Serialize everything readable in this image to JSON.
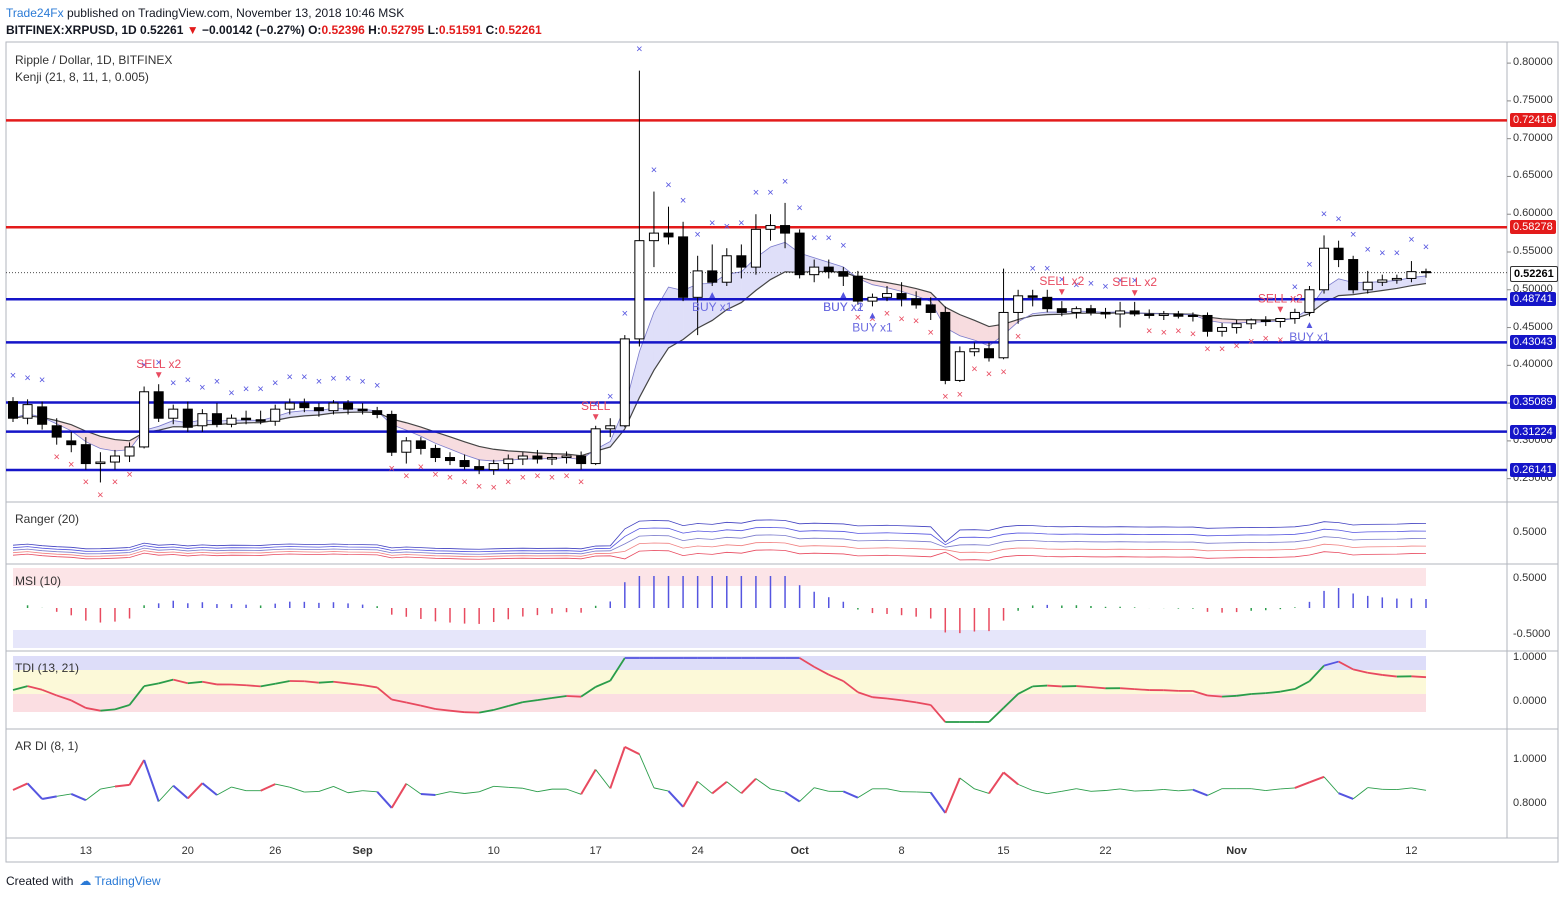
{
  "header": {
    "publisher": "Trade24Fx",
    "published_on": "published on TradingView.com, November 13, 2018 10:46 MSK",
    "symbol": "BITFINEX:XRPUSD, 1D",
    "last": "0.52261",
    "change": "−0.00142 (−0.27%)",
    "open_label": "O:",
    "open": "0.52396",
    "high_label": "H:",
    "high": "0.52795",
    "low_label": "L:",
    "low": "0.51591",
    "close_label": "C:",
    "close": "0.52261"
  },
  "chart_data": {
    "type": "candlestick",
    "title": "Ripple / Dollar, 1D, BITFINEX",
    "indicator": "Kenji (21, 8, 11, 1, 0.005)",
    "price_axis": [
      "0.80000",
      "0.75000",
      "0.70000",
      "0.65000",
      "0.60000",
      "0.55000",
      "0.50000",
      "0.45000",
      "0.40000",
      "0.35000",
      "0.30000",
      "0.25000"
    ],
    "ylim": [
      0.235,
      0.82
    ],
    "x_labels": [
      {
        "text": "13",
        "i": 5
      },
      {
        "text": "20",
        "i": 12
      },
      {
        "text": "26",
        "i": 18
      },
      {
        "text": "Sep",
        "i": 24
      },
      {
        "text": "10",
        "i": 33
      },
      {
        "text": "17",
        "i": 40
      },
      {
        "text": "24",
        "i": 47
      },
      {
        "text": "Oct",
        "i": 54
      },
      {
        "text": "8",
        "i": 61
      },
      {
        "text": "15",
        "i": 68
      },
      {
        "text": "22",
        "i": 75
      },
      {
        "text": "Nov",
        "i": 84
      },
      {
        "text": "12",
        "i": 96
      }
    ],
    "horizontal_levels": [
      {
        "value": "0.72416",
        "color": "#e31b1b"
      },
      {
        "value": "0.58278",
        "color": "#e31b1b"
      },
      {
        "value": "0.48741",
        "color": "#1515c8"
      },
      {
        "value": "0.43043",
        "color": "#1515c8"
      },
      {
        "value": "0.35089",
        "color": "#1515c8"
      },
      {
        "value": "0.31224",
        "color": "#1515c8"
      },
      {
        "value": "0.26141",
        "color": "#1515c8"
      }
    ],
    "current_price": "0.52261",
    "candles": [
      [
        0.352,
        0.358,
        0.325,
        0.33
      ],
      [
        0.33,
        0.355,
        0.322,
        0.348
      ],
      [
        0.345,
        0.352,
        0.315,
        0.322
      ],
      [
        0.32,
        0.33,
        0.295,
        0.305
      ],
      [
        0.3,
        0.312,
        0.285,
        0.295
      ],
      [
        0.295,
        0.305,
        0.262,
        0.27
      ],
      [
        0.27,
        0.285,
        0.245,
        0.272
      ],
      [
        0.272,
        0.288,
        0.262,
        0.28
      ],
      [
        0.28,
        0.298,
        0.272,
        0.292
      ],
      [
        0.292,
        0.372,
        0.29,
        0.365
      ],
      [
        0.365,
        0.375,
        0.325,
        0.33
      ],
      [
        0.33,
        0.348,
        0.322,
        0.342
      ],
      [
        0.342,
        0.352,
        0.312,
        0.318
      ],
      [
        0.32,
        0.342,
        0.312,
        0.336
      ],
      [
        0.336,
        0.35,
        0.318,
        0.322
      ],
      [
        0.322,
        0.335,
        0.318,
        0.33
      ],
      [
        0.33,
        0.34,
        0.322,
        0.328
      ],
      [
        0.328,
        0.34,
        0.322,
        0.326
      ],
      [
        0.326,
        0.348,
        0.32,
        0.342
      ],
      [
        0.342,
        0.356,
        0.335,
        0.35
      ],
      [
        0.35,
        0.356,
        0.338,
        0.344
      ],
      [
        0.344,
        0.35,
        0.332,
        0.34
      ],
      [
        0.34,
        0.354,
        0.335,
        0.35
      ],
      [
        0.35,
        0.354,
        0.335,
        0.342
      ],
      [
        0.342,
        0.35,
        0.335,
        0.34
      ],
      [
        0.34,
        0.345,
        0.33,
        0.335
      ],
      [
        0.335,
        0.34,
        0.28,
        0.285
      ],
      [
        0.285,
        0.305,
        0.27,
        0.3
      ],
      [
        0.3,
        0.305,
        0.282,
        0.29
      ],
      [
        0.29,
        0.295,
        0.272,
        0.278
      ],
      [
        0.278,
        0.285,
        0.268,
        0.274
      ],
      [
        0.274,
        0.282,
        0.262,
        0.266
      ],
      [
        0.266,
        0.275,
        0.256,
        0.262
      ],
      [
        0.262,
        0.275,
        0.255,
        0.27
      ],
      [
        0.27,
        0.282,
        0.262,
        0.276
      ],
      [
        0.276,
        0.285,
        0.268,
        0.28
      ],
      [
        0.28,
        0.288,
        0.27,
        0.276
      ],
      [
        0.276,
        0.284,
        0.268,
        0.278
      ],
      [
        0.278,
        0.286,
        0.27,
        0.28
      ],
      [
        0.28,
        0.286,
        0.262,
        0.27
      ],
      [
        0.27,
        0.32,
        0.268,
        0.316
      ],
      [
        0.316,
        0.33,
        0.305,
        0.32
      ],
      [
        0.32,
        0.44,
        0.318,
        0.435
      ],
      [
        0.435,
        0.79,
        0.425,
        0.565
      ],
      [
        0.565,
        0.63,
        0.53,
        0.575
      ],
      [
        0.575,
        0.61,
        0.56,
        0.57
      ],
      [
        0.57,
        0.59,
        0.485,
        0.49
      ],
      [
        0.49,
        0.545,
        0.44,
        0.525
      ],
      [
        0.525,
        0.56,
        0.505,
        0.51
      ],
      [
        0.51,
        0.555,
        0.505,
        0.545
      ],
      [
        0.545,
        0.56,
        0.515,
        0.53
      ],
      [
        0.53,
        0.6,
        0.52,
        0.58
      ],
      [
        0.58,
        0.6,
        0.565,
        0.585
      ],
      [
        0.585,
        0.615,
        0.555,
        0.575
      ],
      [
        0.575,
        0.58,
        0.515,
        0.52
      ],
      [
        0.52,
        0.54,
        0.51,
        0.53
      ],
      [
        0.53,
        0.54,
        0.515,
        0.524
      ],
      [
        0.524,
        0.53,
        0.505,
        0.518
      ],
      [
        0.518,
        0.525,
        0.48,
        0.485
      ],
      [
        0.485,
        0.495,
        0.478,
        0.49
      ],
      [
        0.49,
        0.505,
        0.485,
        0.495
      ],
      [
        0.495,
        0.51,
        0.478,
        0.488
      ],
      [
        0.488,
        0.498,
        0.475,
        0.48
      ],
      [
        0.48,
        0.49,
        0.46,
        0.47
      ],
      [
        0.47,
        0.478,
        0.375,
        0.38
      ],
      [
        0.38,
        0.425,
        0.378,
        0.418
      ],
      [
        0.418,
        0.43,
        0.412,
        0.422
      ],
      [
        0.422,
        0.43,
        0.405,
        0.41
      ],
      [
        0.41,
        0.528,
        0.408,
        0.47
      ],
      [
        0.47,
        0.5,
        0.455,
        0.492
      ],
      [
        0.492,
        0.5,
        0.478,
        0.49
      ],
      [
        0.49,
        0.5,
        0.47,
        0.475
      ],
      [
        0.475,
        0.485,
        0.465,
        0.47
      ],
      [
        0.47,
        0.478,
        0.462,
        0.475
      ],
      [
        0.475,
        0.48,
        0.466,
        0.47
      ],
      [
        0.47,
        0.476,
        0.462,
        0.468
      ],
      [
        0.468,
        0.484,
        0.45,
        0.472
      ],
      [
        0.472,
        0.484,
        0.465,
        0.468
      ],
      [
        0.468,
        0.474,
        0.462,
        0.466
      ],
      [
        0.466,
        0.472,
        0.46,
        0.468
      ],
      [
        0.468,
        0.472,
        0.462,
        0.465
      ],
      [
        0.465,
        0.47,
        0.458,
        0.466
      ],
      [
        0.466,
        0.47,
        0.438,
        0.445
      ],
      [
        0.445,
        0.456,
        0.438,
        0.45
      ],
      [
        0.45,
        0.46,
        0.442,
        0.455
      ],
      [
        0.455,
        0.462,
        0.448,
        0.46
      ],
      [
        0.46,
        0.465,
        0.452,
        0.458
      ],
      [
        0.458,
        0.462,
        0.45,
        0.462
      ],
      [
        0.462,
        0.475,
        0.455,
        0.47
      ],
      [
        0.47,
        0.505,
        0.465,
        0.5
      ],
      [
        0.5,
        0.572,
        0.495,
        0.555
      ],
      [
        0.555,
        0.565,
        0.53,
        0.54
      ],
      [
        0.54,
        0.545,
        0.495,
        0.5
      ],
      [
        0.5,
        0.525,
        0.495,
        0.51
      ],
      [
        0.51,
        0.52,
        0.505,
        0.513
      ],
      [
        0.513,
        0.52,
        0.508,
        0.515
      ],
      [
        0.515,
        0.538,
        0.51,
        0.524
      ],
      [
        0.524,
        0.528,
        0.516,
        0.5226
      ]
    ],
    "signals": [
      {
        "text": "SELL x2",
        "i": 10,
        "side": "sell"
      },
      {
        "text": "SELL",
        "i": 40,
        "side": "sell"
      },
      {
        "text": "BUY x1",
        "i": 48,
        "side": "buy"
      },
      {
        "text": "BUY x2",
        "i": 57,
        "side": "buy"
      },
      {
        "text": "BUY x1",
        "i": 57,
        "side": "buy"
      },
      {
        "text": "BUY x1",
        "i": 59,
        "side": "buy"
      },
      {
        "text": "SELL x2",
        "i": 72,
        "side": "sell"
      },
      {
        "text": "SELL x2",
        "i": 77,
        "side": "sell"
      },
      {
        "text": "SELL x2",
        "i": 87,
        "side": "sell"
      },
      {
        "text": "BUY x1",
        "i": 89,
        "side": "buy"
      }
    ],
    "panels": [
      {
        "name": "Ranger (20)",
        "ticks": [
          "0.5000"
        ]
      },
      {
        "name": "MSI (10)",
        "ticks": [
          "0.5000",
          "-0.5000"
        ]
      },
      {
        "name": "TDI (13, 21)",
        "ticks": [
          "1.0000",
          "0.0000"
        ]
      },
      {
        "name": "AR DI (8, 1)",
        "ticks": [
          "1.0000",
          "0.8000"
        ]
      }
    ]
  },
  "footer": {
    "created_with": "Created with",
    "brand": "TradingView"
  }
}
